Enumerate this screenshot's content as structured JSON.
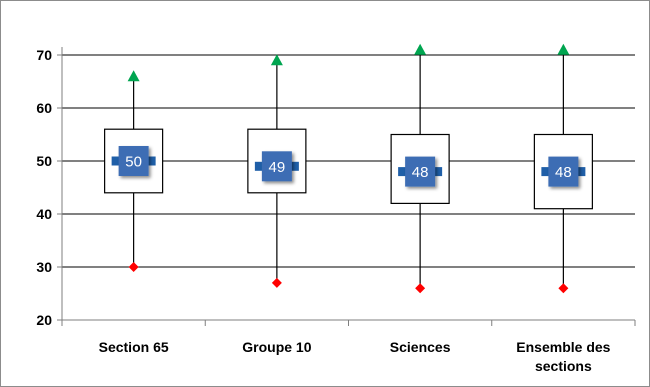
{
  "chart_data": {
    "type": "box",
    "title": "",
    "xlabel": "",
    "ylabel": "",
    "ylim": [
      20,
      70
    ],
    "yticks": [
      20,
      30,
      40,
      50,
      60,
      70
    ],
    "grid": true,
    "legend": "none",
    "categories": [
      "Section 65",
      "Groupe 10",
      "Sciences",
      "Ensemble des sections"
    ],
    "series": [
      {
        "max": [
          66,
          69,
          71,
          71
        ],
        "q3": [
          56,
          56,
          55,
          55
        ],
        "median": [
          50,
          49,
          48,
          48
        ],
        "q1": [
          44,
          44,
          42,
          41
        ],
        "min": [
          30,
          27,
          26,
          26
        ]
      }
    ],
    "median_labels": [
      "50",
      "49",
      "48",
      "48"
    ],
    "colors": {
      "max_marker": "#00a550",
      "min_marker": "#ff0000",
      "median_label_bg": "#3d6db4",
      "median_bar": "#1f5fa8",
      "box_fill": "#ffffff",
      "grid": "#000000"
    }
  }
}
